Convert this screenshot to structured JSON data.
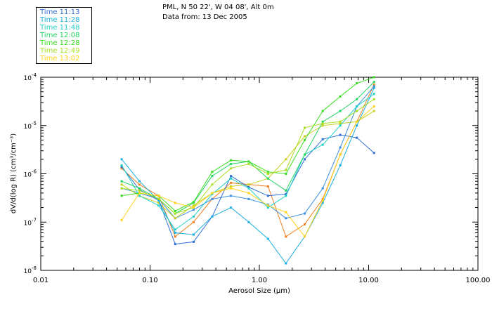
{
  "header": {
    "station": "PML, N 50 22', W 04 08', Alt 0m",
    "data_from": "Data from: 13 Dec 2005"
  },
  "chart_data": {
    "type": "line",
    "xscale": "log",
    "yscale": "log",
    "xlabel": "Aerosol Size (µm)",
    "ylabel": "dV/d(log R) (cm³/cm⁻³)",
    "xlim": [
      0.01,
      100
    ],
    "ylim": [
      1e-08,
      0.0001
    ],
    "x_ticks": [
      {
        "value": 0.01,
        "label": "0.01"
      },
      {
        "value": 0.1,
        "label": "0.10"
      },
      {
        "value": 1,
        "label": "1.00"
      },
      {
        "value": 10,
        "label": "10.00"
      },
      {
        "value": 100,
        "label": "100.00"
      }
    ],
    "y_ticks": [
      {
        "exp": -8,
        "label": "10",
        "sup": "-8"
      },
      {
        "exp": -7,
        "label": "10",
        "sup": "-7"
      },
      {
        "exp": -6,
        "label": "10",
        "sup": "-6"
      },
      {
        "exp": -5,
        "label": "10",
        "sup": "-5"
      },
      {
        "exp": -4,
        "label": "10",
        "sup": "-4"
      }
    ],
    "x": [
      0.055,
      0.08,
      0.12,
      0.17,
      0.25,
      0.37,
      0.55,
      0.8,
      1.2,
      1.75,
      2.6,
      3.8,
      5.5,
      7.8,
      11.2
    ],
    "series": [
      {
        "name": "Time 11:13",
        "color": "#2f6fd6",
        "values": [
          1.4e-06,
          4.7e-07,
          2.8e-07,
          3.5e-08,
          3.9e-08,
          1.3e-07,
          9e-07,
          5.3e-07,
          3.5e-07,
          3.8e-07,
          2e-06,
          5.2e-06,
          6.4e-06,
          5.6e-06,
          2.7e-06
        ]
      },
      {
        "name": "Time 11:28",
        "color": "#1aaee0",
        "values": [
          2e-06,
          7e-07,
          2.8e-07,
          6e-08,
          5.5e-08,
          1.3e-07,
          2e-07,
          1e-07,
          4.5e-08,
          1.4e-08,
          5e-08,
          2.5e-07,
          1.5e-06,
          1e-05,
          6e-05
        ]
      },
      {
        "name": "Time 11:48",
        "color": "#20d0c8",
        "values": [
          1.5e-06,
          3.5e-07,
          2.2e-07,
          7e-08,
          1.3e-07,
          3.8e-07,
          8e-07,
          5e-07,
          2e-07,
          3.5e-07,
          2.5e-06,
          4e-06,
          1e-05,
          2.5e-05,
          4.5e-05
        ]
      },
      {
        "name": "Time 12:08",
        "color": "#22d460",
        "values": [
          7e-07,
          5e-07,
          3e-07,
          1.5e-07,
          2.5e-07,
          9e-07,
          1.6e-06,
          1.8e-06,
          8e-07,
          4.5e-07,
          2.5e-06,
          1.2e-05,
          2e-05,
          3.5e-05,
          8e-05
        ]
      },
      {
        "name": "Time 12:28",
        "color": "#38dc20",
        "values": [
          3.5e-07,
          4e-07,
          3.5e-07,
          1.7e-07,
          2.6e-07,
          1.1e-06,
          1.9e-06,
          1.8e-06,
          1.1e-06,
          1e-06,
          5e-06,
          2e-05,
          4e-05,
          7.5e-05,
          0.0001
        ]
      },
      {
        "name": "Time 12:49",
        "color": "#a8e020",
        "values": [
          5e-07,
          4.5e-07,
          3e-07,
          1.5e-07,
          2e-07,
          6e-07,
          1.3e-06,
          1.6e-06,
          1e-06,
          1.2e-06,
          9e-06,
          1.1e-05,
          1.2e-05,
          2e-05,
          3.5e-05
        ]
      },
      {
        "name": "Time 13:02",
        "color": "#ffd21a",
        "values": [
          1.1e-07,
          4e-07,
          3.5e-07,
          2.5e-07,
          2e-07,
          4e-07,
          5e-07,
          4e-07,
          2.2e-07,
          1.6e-07,
          5e-08,
          2.8e-07,
          2.5e-06,
          1.2e-05,
          2.5e-05
        ]
      }
    ],
    "extra_traces": [
      {
        "color": "#f08020",
        "values": [
          1.3e-06,
          6e-07,
          3.5e-07,
          5e-08,
          1e-07,
          3e-07,
          6.5e-07,
          6e-07,
          5.5e-07,
          5e-08,
          9e-08,
          3e-07,
          2.5e-06,
          1.2e-05,
          7e-05
        ]
      },
      {
        "color": "#3a8fe0",
        "values": [
          5e-07,
          4e-07,
          3e-07,
          1.2e-07,
          1.8e-07,
          3e-07,
          3.5e-07,
          3e-07,
          2.3e-07,
          1.2e-07,
          1.5e-07,
          5e-07,
          3.5e-06,
          2.5e-05,
          6.5e-05
        ]
      },
      {
        "color": "#c8d020",
        "values": [
          6e-07,
          3.5e-07,
          2.5e-07,
          1.2e-07,
          2.2e-07,
          4e-07,
          5.5e-07,
          6e-07,
          8e-07,
          2e-06,
          6e-06,
          1e-05,
          1.1e-05,
          1.2e-05,
          2e-05
        ]
      }
    ]
  }
}
